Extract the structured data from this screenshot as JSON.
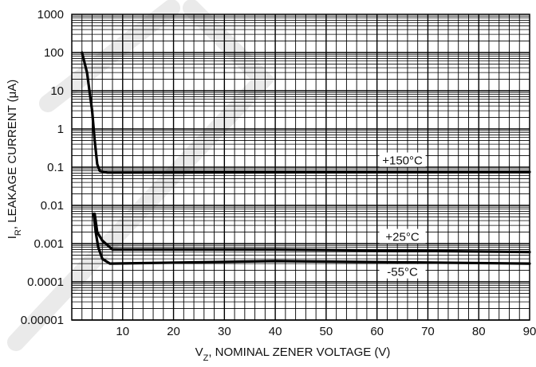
{
  "chart_data": {
    "type": "line",
    "xlabel_main": "V",
    "xlabel_sub": "Z",
    "xlabel_rest": ", NOMINAL ZENER VOLTAGE (V)",
    "ylabel_main": "I",
    "ylabel_sub": "R",
    "ylabel_rest": ", LEAKAGE CURRENT (μA)",
    "xlim": [
      0,
      90
    ],
    "ylim": [
      1e-05,
      1000
    ],
    "yscale": "log",
    "grid": true,
    "x_ticks": [
      10,
      20,
      30,
      40,
      50,
      60,
      70,
      80,
      90
    ],
    "x_tick_labels": [
      "10",
      "20",
      "30",
      "40",
      "50",
      "60",
      "70",
      "80",
      "90"
    ],
    "y_ticks": [
      1000,
      100,
      10,
      1,
      0.1,
      0.01,
      0.001,
      0.0001,
      1e-05
    ],
    "y_tick_labels": [
      "1000",
      "100",
      "10",
      "1",
      "0.1",
      "0.01",
      "0.001",
      "0.0001",
      "0.00001"
    ],
    "series": [
      {
        "name": "+150°C",
        "label_at": [
          65,
          0.15
        ],
        "points": [
          [
            2,
            100
          ],
          [
            3,
            30
          ],
          [
            4,
            3
          ],
          [
            4.5,
            0.5
          ],
          [
            5,
            0.12
          ],
          [
            5.5,
            0.08
          ],
          [
            7,
            0.072
          ],
          [
            90,
            0.075
          ]
        ]
      },
      {
        "name": "+25°C",
        "label_at": [
          65,
          0.0015
        ],
        "points": [
          [
            4.5,
            0.006
          ],
          [
            5,
            0.002
          ],
          [
            6,
            0.0012
          ],
          [
            8,
            0.0007
          ],
          [
            40,
            0.0007
          ],
          [
            90,
            0.0006
          ]
        ]
      },
      {
        "name": "-55°C",
        "label_at": [
          65,
          0.00018
        ],
        "points": [
          [
            4.3,
            0.006
          ],
          [
            4.7,
            0.002
          ],
          [
            5.2,
            0.0008
          ],
          [
            6,
            0.0004
          ],
          [
            7.5,
            0.0003
          ],
          [
            40,
            0.00035
          ],
          [
            90,
            0.0003
          ]
        ]
      }
    ]
  }
}
